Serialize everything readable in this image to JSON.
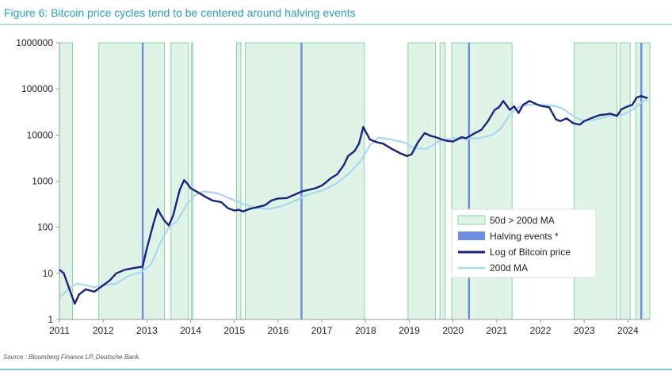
{
  "header": {
    "title": "Figure 6: Bitcoin price cycles tend to be centered around halving events"
  },
  "footer": {
    "source": "Source : Bloomberg Finance LP, Deutsche Bank."
  },
  "colors": {
    "ma_cross_fill": "#dff4e6",
    "ma_cross_edge": "#86d3a4",
    "halving": "#6f8fe0",
    "price": "#1a237e",
    "ma200": "#a8d8f0",
    "axis": "#999999"
  },
  "chart_data": {
    "type": "line",
    "y_scale": "log",
    "ylim": [
      1,
      1000000
    ],
    "xlim": [
      2011.0,
      2024.5
    ],
    "x_tick_labels": [
      "2011",
      "2012",
      "2013",
      "2014",
      "2015",
      "2016",
      "2017",
      "2018",
      "2019",
      "2020",
      "2021",
      "2022",
      "2023",
      "2024"
    ],
    "x_tick_values": [
      2011,
      2012,
      2013,
      2014,
      2015,
      2016,
      2017,
      2018,
      2019,
      2020,
      2021,
      2022,
      2023,
      2024
    ],
    "y_tick_labels": [
      "1",
      "10",
      "100",
      "1000",
      "10000",
      "100000",
      "1000000"
    ],
    "y_tick_values": [
      1,
      10,
      100,
      1000,
      10000,
      100000,
      1000000
    ],
    "legend": {
      "placement": "lower-right",
      "entries": [
        {
          "label": "50d > 200d MA",
          "kind": "ma_cross"
        },
        {
          "label": "Halving events *",
          "kind": "halving"
        },
        {
          "label": "Log of Bitcoin price",
          "kind": "price"
        },
        {
          "label": "200d MA",
          "kind": "ma200"
        }
      ]
    },
    "ma_cross_periods": [
      [
        2011.0,
        2011.3
      ],
      [
        2011.9,
        2013.4
      ],
      [
        2013.55,
        2013.95
      ],
      [
        2014.02,
        2014.05
      ],
      [
        2015.05,
        2015.15
      ],
      [
        2015.25,
        2017.97
      ],
      [
        2018.97,
        2019.6
      ],
      [
        2019.7,
        2019.82
      ],
      [
        2019.97,
        2021.35
      ],
      [
        2022.77,
        2023.75
      ],
      [
        2023.82,
        2024.05
      ],
      [
        2024.18,
        2024.5
      ]
    ],
    "halving_events": [
      2012.9,
      2016.53,
      2020.36,
      2024.3
    ],
    "series": [
      {
        "name": "Log of Bitcoin price",
        "x": [
          2011.0,
          2011.1,
          2011.25,
          2011.35,
          2011.45,
          2011.6,
          2011.8,
          2012.0,
          2012.15,
          2012.3,
          2012.5,
          2012.7,
          2012.9,
          2013.0,
          2013.15,
          2013.25,
          2013.3,
          2013.4,
          2013.5,
          2013.6,
          2013.75,
          2013.85,
          2013.92,
          2014.0,
          2014.1,
          2014.2,
          2014.35,
          2014.5,
          2014.7,
          2014.85,
          2015.0,
          2015.1,
          2015.2,
          2015.35,
          2015.5,
          2015.7,
          2015.85,
          2016.0,
          2016.2,
          2016.4,
          2016.55,
          2016.7,
          2016.85,
          2017.0,
          2017.1,
          2017.2,
          2017.35,
          2017.5,
          2017.6,
          2017.75,
          2017.85,
          2017.95,
          2018.0,
          2018.1,
          2018.25,
          2018.4,
          2018.6,
          2018.8,
          2018.95,
          2019.05,
          2019.2,
          2019.35,
          2019.5,
          2019.6,
          2019.75,
          2019.85,
          2020.0,
          2020.2,
          2020.3,
          2020.5,
          2020.65,
          2020.8,
          2020.95,
          2021.05,
          2021.15,
          2021.3,
          2021.4,
          2021.5,
          2021.6,
          2021.75,
          2021.9,
          2022.0,
          2022.2,
          2022.35,
          2022.45,
          2022.6,
          2022.75,
          2022.9,
          2023.0,
          2023.2,
          2023.35,
          2023.5,
          2023.6,
          2023.75,
          2023.85,
          2024.0,
          2024.1,
          2024.2,
          2024.3,
          2024.45
        ],
        "values": [
          12,
          10,
          4,
          2.2,
          3.5,
          4.5,
          4,
          5.5,
          7,
          10,
          12,
          13,
          14,
          35,
          120,
          250,
          200,
          140,
          110,
          180,
          650,
          1050,
          900,
          700,
          620,
          550,
          450,
          380,
          350,
          260,
          230,
          240,
          220,
          250,
          270,
          300,
          380,
          420,
          430,
          520,
          600,
          650,
          700,
          800,
          950,
          1150,
          1400,
          2200,
          3500,
          4500,
          6500,
          15000,
          12000,
          8000,
          7000,
          6500,
          5000,
          4000,
          3500,
          3800,
          7000,
          11000,
          9500,
          9000,
          8000,
          7500,
          7200,
          9000,
          8500,
          11000,
          13000,
          20000,
          35000,
          40000,
          55000,
          35000,
          42000,
          30000,
          45000,
          55000,
          47000,
          43000,
          40000,
          22000,
          20000,
          23000,
          18000,
          16800,
          20000,
          24000,
          27000,
          28000,
          29000,
          26000,
          36000,
          42000,
          45000,
          65000,
          70000,
          63000
        ]
      },
      {
        "name": "200d MA",
        "x": [
          2011.0,
          2011.2,
          2011.4,
          2011.6,
          2011.8,
          2012.0,
          2012.3,
          2012.6,
          2012.9,
          2013.1,
          2013.3,
          2013.5,
          2013.7,
          2013.9,
          2014.1,
          2014.3,
          2014.6,
          2014.9,
          2015.2,
          2015.5,
          2015.8,
          2016.1,
          2016.4,
          2016.7,
          2017.0,
          2017.3,
          2017.6,
          2017.9,
          2018.1,
          2018.3,
          2018.6,
          2018.9,
          2019.1,
          2019.4,
          2019.7,
          2020.0,
          2020.3,
          2020.6,
          2020.9,
          2021.1,
          2021.3,
          2021.5,
          2021.7,
          2021.9,
          2022.1,
          2022.3,
          2022.5,
          2022.8,
          2023.0,
          2023.3,
          2023.6,
          2023.9,
          2024.1,
          2024.3,
          2024.45
        ],
        "values": [
          3,
          4.5,
          6,
          5.5,
          5,
          5.5,
          6,
          9,
          11,
          16,
          45,
          100,
          140,
          300,
          500,
          600,
          550,
          420,
          320,
          260,
          250,
          290,
          380,
          520,
          620,
          850,
          1400,
          2800,
          6000,
          8800,
          8000,
          6800,
          5200,
          5000,
          7500,
          8500,
          8200,
          8500,
          10000,
          14000,
          28000,
          40000,
          45000,
          46000,
          45000,
          43000,
          38000,
          24000,
          20000,
          22000,
          26000,
          28000,
          35000,
          50000,
          60000
        ]
      }
    ]
  }
}
